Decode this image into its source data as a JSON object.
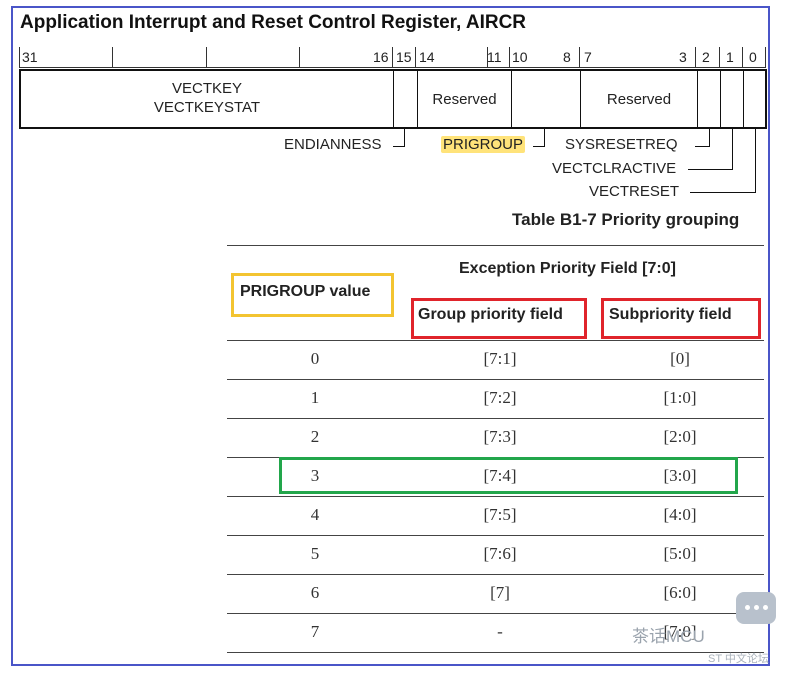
{
  "title": "Application Interrupt and Reset Control Register, AIRCR",
  "bit_numbers": [
    "31",
    "16",
    "15",
    "14",
    "11",
    "10",
    "8",
    "7",
    "3",
    "2",
    "1",
    "0"
  ],
  "register_fields": {
    "vectkey_line1": "VECTKEY",
    "vectkey_line2": "VECTKEYSTAT",
    "reserved_a": "Reserved",
    "reserved_b": "Reserved"
  },
  "field_labels": {
    "endianness": "ENDIANNESS",
    "prigroup": "PRIGROUP",
    "sysresetreq": "SYSRESETREQ",
    "vectclractive": "VECTCLRACTIVE",
    "vectreset": "VECTRESET"
  },
  "highlight_colors": {
    "prigroup_fill": "#ffe37a",
    "yellow_box": "#f3c431",
    "red_box": "#e0242b",
    "green_box": "#22a64b",
    "frame": "#4a55c8"
  },
  "table": {
    "caption": "Table B1-7 Priority grouping",
    "header_prigroup": "PRIGROUP value",
    "header_exception": "Exception Priority Field [7:0]",
    "header_group": "Group priority field",
    "header_sub": "Subpriority field",
    "rows": [
      {
        "value": "0",
        "group": "[7:1]",
        "sub": "[0]"
      },
      {
        "value": "1",
        "group": "[7:2]",
        "sub": "[1:0]"
      },
      {
        "value": "2",
        "group": "[7:3]",
        "sub": "[2:0]"
      },
      {
        "value": "3",
        "group": "[7:4]",
        "sub": "[3:0]"
      },
      {
        "value": "4",
        "group": "[7:5]",
        "sub": "[4:0]"
      },
      {
        "value": "5",
        "group": "[7:6]",
        "sub": "[5:0]"
      },
      {
        "value": "6",
        "group": "[7]",
        "sub": "[6:0]"
      },
      {
        "value": "7",
        "group": "-",
        "sub": "[7:0]"
      }
    ]
  },
  "watermark": {
    "brand": "茶话MCU",
    "sub": "ST 中文论坛",
    "icon": "chat-bubble-icon"
  }
}
